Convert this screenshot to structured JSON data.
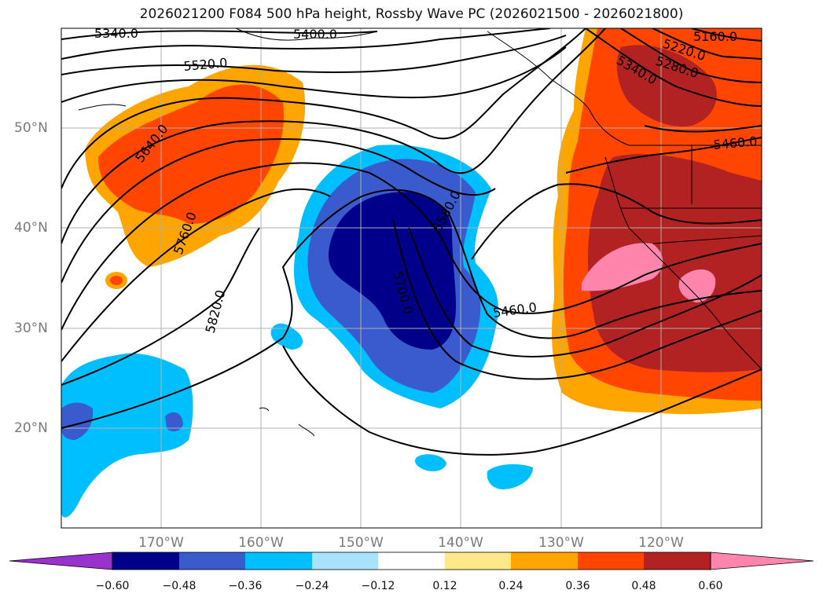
{
  "title": "2026021200 F084 500 hPa height, Rossby Wave PC (2026021500 - 2026021800)",
  "map": {
    "lat_labels": [
      "50°N",
      "40°N",
      "30°N",
      "20°N"
    ],
    "lon_labels": [
      "170°W",
      "160°W",
      "150°W",
      "140°W",
      "130°W",
      "120°W"
    ],
    "contour_labels": [
      "5340.0",
      "5400.0",
      "5520.0",
      "5640.0",
      "5760.0",
      "5820.0",
      "5700.0",
      "5580.0",
      "5460.0",
      "5160.0",
      "5220.0",
      "5280.0",
      "5340.0",
      "5460.0"
    ]
  },
  "colorbar": {
    "ticks": [
      "−0.60",
      "−0.48",
      "−0.36",
      "−0.24",
      "−0.12",
      "0.12",
      "0.24",
      "0.36",
      "0.48",
      "0.60"
    ],
    "colors": [
      "#9932cc",
      "#00008b",
      "#3a5bcd",
      "#00bfff",
      "#a8e2fb",
      "#ffffff",
      "#ffe88a",
      "#ffa500",
      "#ff4500",
      "#b22222",
      "#ff85ad"
    ]
  },
  "colors": {
    "grid": "#b0b0b0",
    "contour": "#000000",
    "axis_label": "#7a7a7a"
  }
}
